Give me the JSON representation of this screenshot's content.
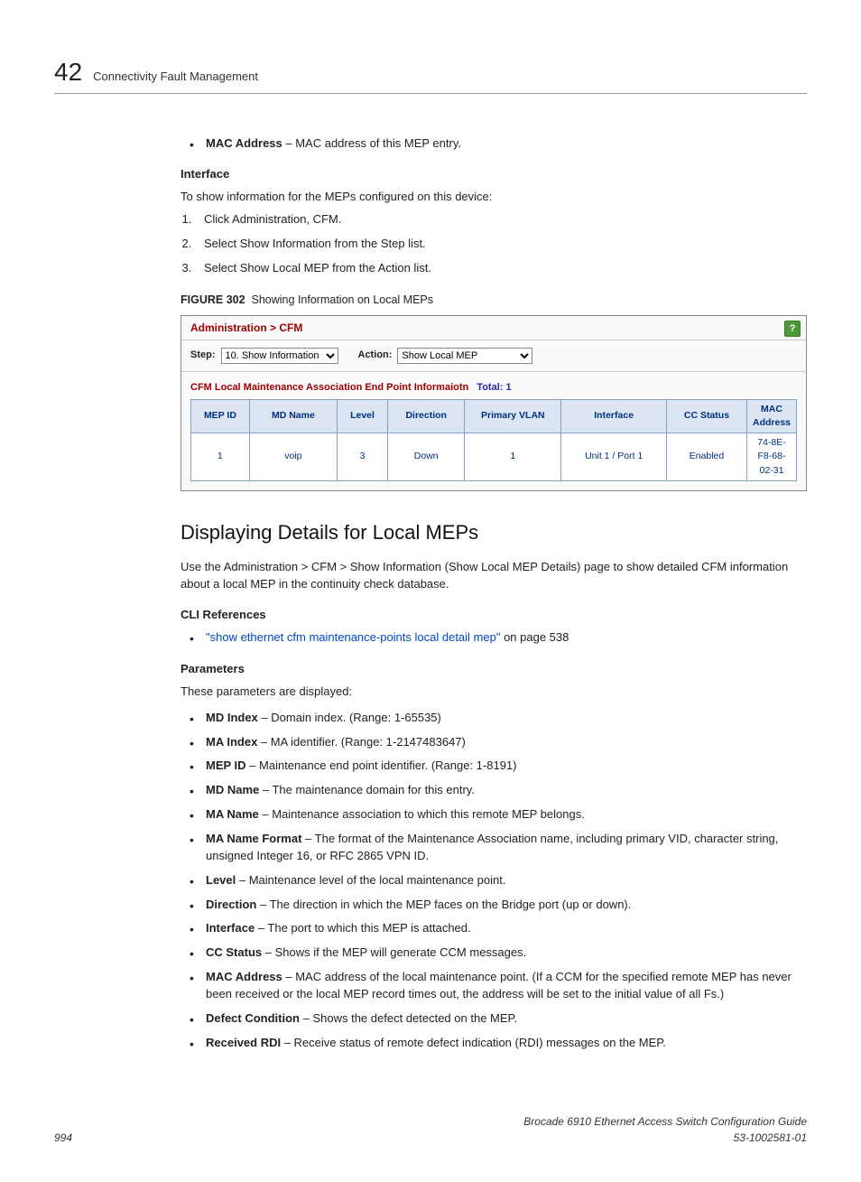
{
  "chapter": {
    "number": "42",
    "title": "Connectivity Fault Management"
  },
  "top_bullet": {
    "term": "MAC Address",
    "desc": " – MAC address of this MEP entry."
  },
  "interface": {
    "label": "Interface",
    "intro": "To show information for the MEPs configured on this device:",
    "steps": [
      "Click Administration, CFM.",
      "Select Show Information from the Step list.",
      "Select Show Local MEP from the Action list."
    ]
  },
  "figure": {
    "caption_label": "FIGURE 302",
    "caption_text": "Showing Information on Local MEPs",
    "breadcrumb": "Administration > CFM",
    "step_label": "Step:",
    "step_value": "10. Show Information",
    "action_label": "Action:",
    "action_value": "Show Local MEP",
    "subtitle": "CFM Local Maintenance Association End Point Informaiotn",
    "total_label": "Total: 1",
    "headers": [
      "MEP ID",
      "MD Name",
      "Level",
      "Direction",
      "Primary VLAN",
      "Interface",
      "CC Status",
      "MAC Address"
    ],
    "row": [
      "1",
      "voip",
      "3",
      "Down",
      "1",
      "Unit 1 / Port 1",
      "Enabled",
      "74-8E-F8-68-02-31"
    ],
    "col_widths": [
      "55px",
      "90px",
      "45px",
      "75px",
      "100px",
      "110px",
      "80px",
      "auto"
    ],
    "header_bg": "#dce6f2",
    "header_color": "#003080",
    "border_color": "#8aa0c0"
  },
  "subsection": {
    "title": "Displaying Details for Local MEPs",
    "intro": "Use the Administration > CFM > Show Information (Show Local MEP Details) page to show detailed CFM information about a local MEP in the continuity check database."
  },
  "cli": {
    "label": "CLI References",
    "link_text": "\"show ethernet cfm maintenance-points local detail mep\"",
    "suffix": " on page 538"
  },
  "params": {
    "label": "Parameters",
    "intro": "These parameters are displayed:",
    "items": [
      {
        "term": "MD Index",
        "desc": " – Domain index. (Range: 1-65535)"
      },
      {
        "term": "MA Index",
        "desc": " – MA identifier. (Range: 1-2147483647)"
      },
      {
        "term": "MEP ID",
        "desc": " – Maintenance end point identifier. (Range: 1-8191)"
      },
      {
        "term": "MD Name",
        "desc": " – The maintenance domain for this entry."
      },
      {
        "term": "MA Name",
        "desc": " – Maintenance association to which this remote MEP belongs."
      },
      {
        "term": "MA Name Format",
        "desc": " – The format of the Maintenance Association name, including primary VID, character string, unsigned Integer 16, or RFC 2865 VPN ID."
      },
      {
        "term": "Level",
        "desc": " – Maintenance level of the local maintenance point."
      },
      {
        "term": "Direction",
        "desc": " – The direction in which the MEP faces on the Bridge port (up or down)."
      },
      {
        "term": "Interface",
        "desc": " – The port to which this MEP is attached."
      },
      {
        "term": "CC Status",
        "desc": " – Shows if the MEP will generate CCM messages."
      },
      {
        "term": "MAC Address",
        "desc": " – MAC address of the local maintenance point. (If a CCM for the specified remote MEP has never been received or the local MEP record times out, the address will be set to the initial value of all Fs.)"
      },
      {
        "term": "Defect Condition",
        "desc": " – Shows the defect detected on the MEP."
      },
      {
        "term": "Received RDI",
        "desc": " – Receive status of remote defect indication (RDI) messages on the MEP."
      }
    ]
  },
  "footer": {
    "page": "994",
    "book": "Brocade 6910 Ethernet Access Switch Configuration Guide",
    "docnum": "53-1002581-01"
  }
}
